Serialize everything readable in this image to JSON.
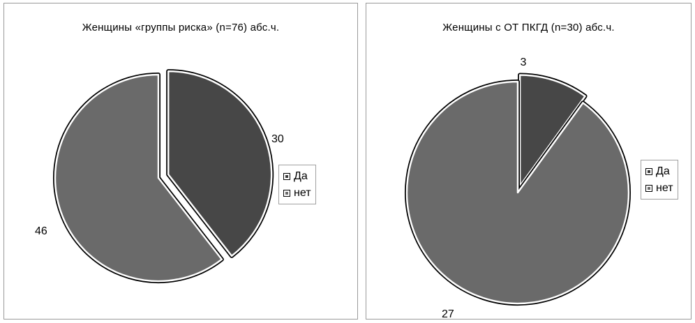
{
  "chart_data": [
    {
      "type": "pie",
      "title": "Женщины «группы риска» (n=76) абс.ч.",
      "categories": [
        "Да",
        "нет"
      ],
      "values": [
        30,
        46
      ],
      "data_labels": [
        "30",
        "46"
      ],
      "legend": [
        "Да",
        "нет"
      ],
      "legend_position": "right",
      "exploded": [
        true,
        false
      ],
      "colors": [
        "#474747",
        "#6a6a6a"
      ]
    },
    {
      "type": "pie",
      "title": "Женщины с ОТ ПКГД (n=30) абс.ч.",
      "categories": [
        "Да",
        "нет"
      ],
      "values": [
        3,
        27
      ],
      "data_labels": [
        "3",
        "27"
      ],
      "legend": [
        "Да",
        "нет"
      ],
      "legend_position": "right",
      "exploded": [
        true,
        false
      ],
      "colors": [
        "#474747",
        "#6a6a6a"
      ]
    }
  ]
}
